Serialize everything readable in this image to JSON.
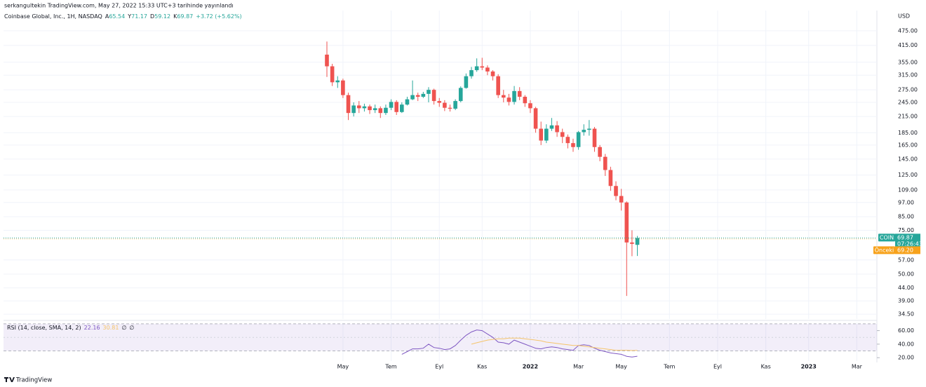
{
  "header": {
    "author_line": "serkangultekin TradingView.com, May 27, 2022 15:33 UTC+3 tarihinde yayınlandı"
  },
  "chart_data": {
    "type": "candlestick",
    "title": "Coinbase Global, Inc., 1H, NASDAQ",
    "ohlc_labels": [
      "A",
      "Y",
      "D",
      "K"
    ],
    "change": "+3.72 (+5.62%)",
    "currency": "USD",
    "symbol": "COIN",
    "countdown": "07:26:43",
    "previous_label": "Önceki",
    "previous_close": {
      "value": 69.2,
      "label": "69.20"
    },
    "up_color": "#26a69a",
    "down_color": "#ef5350",
    "log_scale": true,
    "grid": true,
    "categories": [
      null,
      null,
      null,
      "May",
      null,
      null,
      null,
      null,
      null,
      null,
      null,
      null,
      "Tem",
      null,
      null,
      null,
      null,
      null,
      null,
      null,
      null,
      "Eyl",
      null,
      null,
      null,
      null,
      null,
      null,
      null,
      "Kas",
      null,
      null,
      null,
      null,
      null,
      null,
      null,
      null,
      "2022",
      null,
      null,
      null,
      null,
      null,
      null,
      null,
      null,
      "Mar",
      null,
      null,
      null,
      null,
      null,
      null,
      null,
      "May",
      null,
      null,
      null,
      null,
      null,
      null,
      null,
      null,
      "Tem",
      null,
      null,
      null,
      null,
      null,
      null,
      null,
      null,
      "Eyl",
      null,
      null,
      null,
      null,
      null,
      null,
      null,
      null,
      "Kas",
      null,
      null,
      null,
      null,
      null,
      null,
      null,
      "2023",
      null,
      null,
      null,
      null,
      null,
      null,
      null,
      null,
      "Mar",
      null,
      null,
      null,
      null
    ],
    "open": [
      381,
      342,
      295,
      300,
      262,
      222,
      238,
      232,
      236,
      228,
      232,
      222,
      233,
      246,
      224,
      240,
      252,
      262,
      258,
      265,
      275,
      248,
      244,
      233,
      231,
      248,
      280,
      312,
      330,
      342,
      338,
      326,
      312,
      262,
      256,
      246,
      272,
      258,
      243,
      232,
      192,
      172,
      192,
      198,
      186,
      178,
      168,
      162,
      186,
      190,
      192,
      162,
      148,
      131,
      113,
      103,
      97,
      67,
      65.54,
      null,
      null,
      null,
      null,
      null,
      null,
      null,
      null,
      null,
      null,
      null,
      null,
      null,
      null,
      null,
      null,
      null,
      null,
      null,
      null,
      null,
      null,
      null,
      null,
      null,
      null,
      null,
      null,
      null,
      null,
      null,
      null,
      null,
      null,
      null,
      null,
      null,
      null,
      null,
      null,
      null,
      null,
      null,
      null,
      null
    ],
    "high": [
      430,
      350,
      312,
      305,
      268,
      245,
      248,
      242,
      240,
      240,
      236,
      240,
      252,
      250,
      245,
      258,
      300,
      268,
      270,
      282,
      278,
      255,
      250,
      240,
      252,
      284,
      320,
      340,
      368,
      370,
      345,
      330,
      318,
      275,
      265,
      285,
      282,
      262,
      250,
      235,
      205,
      200,
      212,
      206,
      192,
      182,
      175,
      188,
      200,
      208,
      195,
      165,
      152,
      135,
      118,
      110,
      98,
      75,
      71.17,
      null,
      null,
      null,
      null,
      null,
      null,
      null,
      null,
      null,
      null,
      null,
      null,
      null,
      null,
      null,
      null,
      null,
      null,
      null,
      null,
      null,
      null,
      null,
      null,
      null,
      null,
      null,
      null,
      null,
      null,
      null,
      null,
      null,
      null,
      null,
      null,
      null,
      null,
      null,
      null,
      null,
      null,
      null,
      null,
      null
    ],
    "low": [
      310,
      285,
      280,
      255,
      208,
      215,
      222,
      225,
      220,
      222,
      212,
      218,
      228,
      218,
      222,
      238,
      250,
      248,
      255,
      245,
      240,
      235,
      226,
      225,
      228,
      245,
      278,
      305,
      325,
      330,
      315,
      300,
      255,
      245,
      238,
      240,
      250,
      235,
      222,
      185,
      165,
      168,
      188,
      178,
      168,
      160,
      155,
      158,
      180,
      180,
      155,
      142,
      124,
      108,
      99,
      90,
      40.83,
      59,
      59.12,
      null,
      null,
      null,
      null,
      null,
      null,
      null,
      null,
      null,
      null,
      null,
      null,
      null,
      null,
      null,
      null,
      null,
      null,
      null,
      null,
      null,
      null,
      null,
      null,
      null,
      null,
      null,
      null,
      null,
      null,
      null,
      null,
      null,
      null,
      null,
      null,
      null,
      null,
      null,
      null,
      null,
      null,
      null,
      null,
      null
    ],
    "close": [
      342,
      295,
      300,
      262,
      222,
      238,
      232,
      236,
      228,
      232,
      222,
      233,
      246,
      224,
      240,
      252,
      262,
      258,
      265,
      275,
      248,
      244,
      233,
      231,
      248,
      280,
      312,
      330,
      342,
      338,
      326,
      312,
      262,
      256,
      246,
      272,
      258,
      243,
      232,
      192,
      172,
      192,
      198,
      186,
      178,
      168,
      162,
      186,
      190,
      192,
      162,
      148,
      131,
      113,
      103,
      97,
      67,
      66.15,
      69.87,
      null,
      null,
      null,
      null,
      null,
      null,
      null,
      null,
      null,
      null,
      null,
      null,
      null,
      null,
      null,
      null,
      null,
      null,
      null,
      null,
      null,
      null,
      null,
      null,
      null,
      null,
      null,
      null,
      null,
      null,
      null,
      null,
      null,
      null,
      null,
      null,
      null,
      null,
      null,
      null,
      null,
      null,
      null,
      null,
      null
    ],
    "ylim": [
      33,
      562
    ],
    "yticks": [
      {
        "value": 475,
        "label": "475.00"
      },
      {
        "value": 415,
        "label": "415.00"
      },
      {
        "value": 355,
        "label": "355.00"
      },
      {
        "value": 315,
        "label": "315.00"
      },
      {
        "value": 275,
        "label": "275.00"
      },
      {
        "value": 245,
        "label": "245.00"
      },
      {
        "value": 215,
        "label": "215.00"
      },
      {
        "value": 185,
        "label": "185.00"
      },
      {
        "value": 165,
        "label": "165.00"
      },
      {
        "value": 145,
        "label": "145.00"
      },
      {
        "value": 125,
        "label": "125.00"
      },
      {
        "value": 109,
        "label": "109.00"
      },
      {
        "value": 97,
        "label": "97.00"
      },
      {
        "value": 85,
        "label": "85.00"
      },
      {
        "value": 75,
        "label": "75.00"
      },
      {
        "value": 57,
        "label": "57.00"
      },
      {
        "value": 50,
        "label": "50.00"
      },
      {
        "value": 44,
        "label": "44.00"
      },
      {
        "value": 39,
        "label": "39.00"
      },
      {
        "value": 34.5,
        "label": "34.50"
      }
    ],
    "indicator": {
      "type": "line",
      "title": "RSI (14, close, SMA, 14, 2)",
      "extras": [
        "∅",
        "∅"
      ],
      "series": [
        {
          "color": "#7e57c2",
          "values": [
            null,
            null,
            null,
            null,
            null,
            null,
            null,
            null,
            null,
            null,
            null,
            null,
            null,
            null,
            25,
            29,
            33,
            33,
            34,
            40,
            35,
            34,
            32,
            33,
            38,
            46,
            53,
            58,
            61,
            60,
            55,
            50,
            43,
            42,
            40,
            46,
            43,
            40,
            37,
            34,
            33,
            35,
            36,
            35,
            33,
            32,
            31,
            38,
            39,
            38,
            34,
            31,
            29,
            27,
            26,
            25,
            22,
            21,
            22.16,
            null,
            null,
            null,
            null,
            null,
            null,
            null,
            null,
            null,
            null,
            null,
            null,
            null,
            null,
            null,
            null,
            null,
            null,
            null,
            null,
            null,
            null,
            null,
            null,
            null,
            null,
            null,
            null,
            null,
            null,
            null,
            null,
            null,
            null,
            null,
            null,
            null,
            null,
            null,
            null,
            null,
            null,
            null,
            null,
            null
          ]
        },
        {
          "color": "#f5c46b",
          "values": [
            null,
            null,
            null,
            null,
            null,
            null,
            null,
            null,
            null,
            null,
            null,
            null,
            null,
            null,
            null,
            null,
            null,
            null,
            null,
            null,
            null,
            null,
            null,
            null,
            null,
            null,
            null,
            40,
            42,
            44,
            46,
            47,
            48,
            48,
            49,
            49,
            49,
            48,
            47,
            46,
            45,
            43,
            42,
            41,
            40,
            39,
            38,
            38,
            37,
            36,
            35,
            34,
            33,
            32,
            31,
            31,
            31,
            30.5,
            30.81,
            null,
            null,
            null,
            null,
            null,
            null,
            null,
            null,
            null,
            null,
            null,
            null,
            null,
            null,
            null,
            null,
            null,
            null,
            null,
            null,
            null,
            null,
            null,
            null,
            null,
            null,
            null,
            null,
            null,
            null,
            null,
            null,
            null,
            null,
            null,
            null,
            null,
            null,
            null,
            null,
            null,
            null,
            null,
            null,
            null
          ]
        }
      ],
      "ylim": [
        15,
        72
      ],
      "yticks": [
        {
          "value": 60,
          "label": "60.00"
        },
        {
          "value": 40,
          "label": "40.00"
        },
        {
          "value": 20,
          "label": "20.00"
        }
      ],
      "bands": [
        30,
        70
      ]
    }
  },
  "footer": {
    "brand": "TradingView"
  }
}
